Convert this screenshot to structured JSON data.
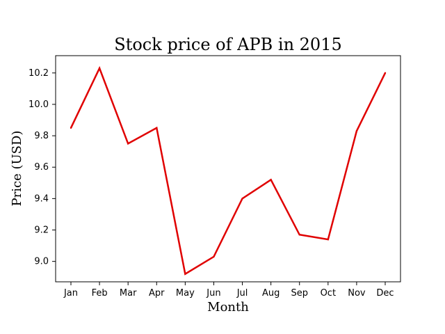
{
  "chart_data": {
    "type": "line",
    "title": "Stock price of APB in 2015",
    "xlabel": "Month",
    "ylabel": "Price (USD)",
    "categories": [
      "Jan",
      "Feb",
      "Mar",
      "Apr",
      "May",
      "Jun",
      "Jul",
      "Aug",
      "Sep",
      "Oct",
      "Nov",
      "Dec"
    ],
    "series": [
      {
        "values": [
          9.85,
          10.23,
          9.75,
          9.85,
          8.92,
          9.03,
          9.4,
          9.52,
          9.17,
          9.14,
          9.83,
          10.2
        ],
        "color": "#e00000"
      }
    ],
    "ylim": [
      8.87,
      10.31
    ],
    "yticks": [
      9.0,
      9.2,
      9.4,
      9.6,
      9.8,
      10.0,
      10.2
    ],
    "ytick_labels": [
      "9.0",
      "9.2",
      "9.4",
      "9.6",
      "9.8",
      "10.0",
      "10.2"
    ],
    "grid": false,
    "legend": "none"
  }
}
